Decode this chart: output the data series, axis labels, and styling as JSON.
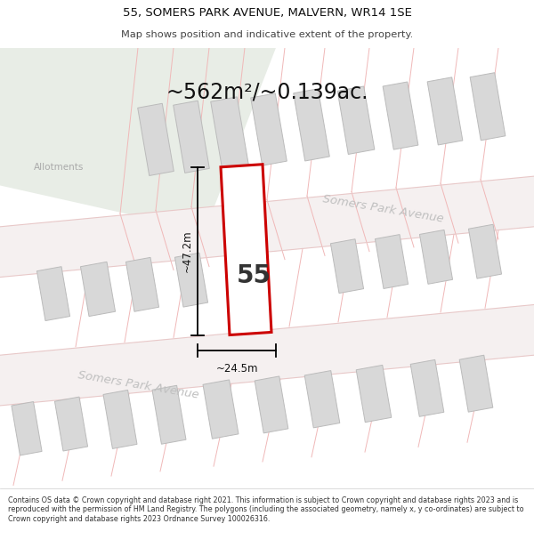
{
  "title_line1": "55, SOMERS PARK AVENUE, MALVERN, WR14 1SE",
  "title_line2": "Map shows position and indicative extent of the property.",
  "area_text": "~562m²/~0.139ac.",
  "dim_height": "~47.2m",
  "dim_width": "~24.5m",
  "plot_number": "55",
  "street_name": "Somers Park Avenue",
  "allotments_label": "Allotments",
  "footer_text": "Contains OS data © Crown copyright and database right 2021. This information is subject to Crown copyright and database rights 2023 and is reproduced with the permission of HM Land Registry. The polygons (including the associated geometry, namely x, y co-ordinates) are subject to Crown copyright and database rights 2023 Ordnance Survey 100026316.",
  "map_bg": "#f7f4f4",
  "allotment_bg": "#e8ede6",
  "building_fill": "#d8d8d8",
  "building_edge": "#bbbbbb",
  "plot_fill": "#ffffff",
  "plot_edge": "#cc0000",
  "street_text_color": "#bbbbbb",
  "footer_bg": "#ffffff",
  "road_fill": "#ffffff",
  "road_outline": "#e8c8c8",
  "parcel_outline": "#f0b8b8"
}
